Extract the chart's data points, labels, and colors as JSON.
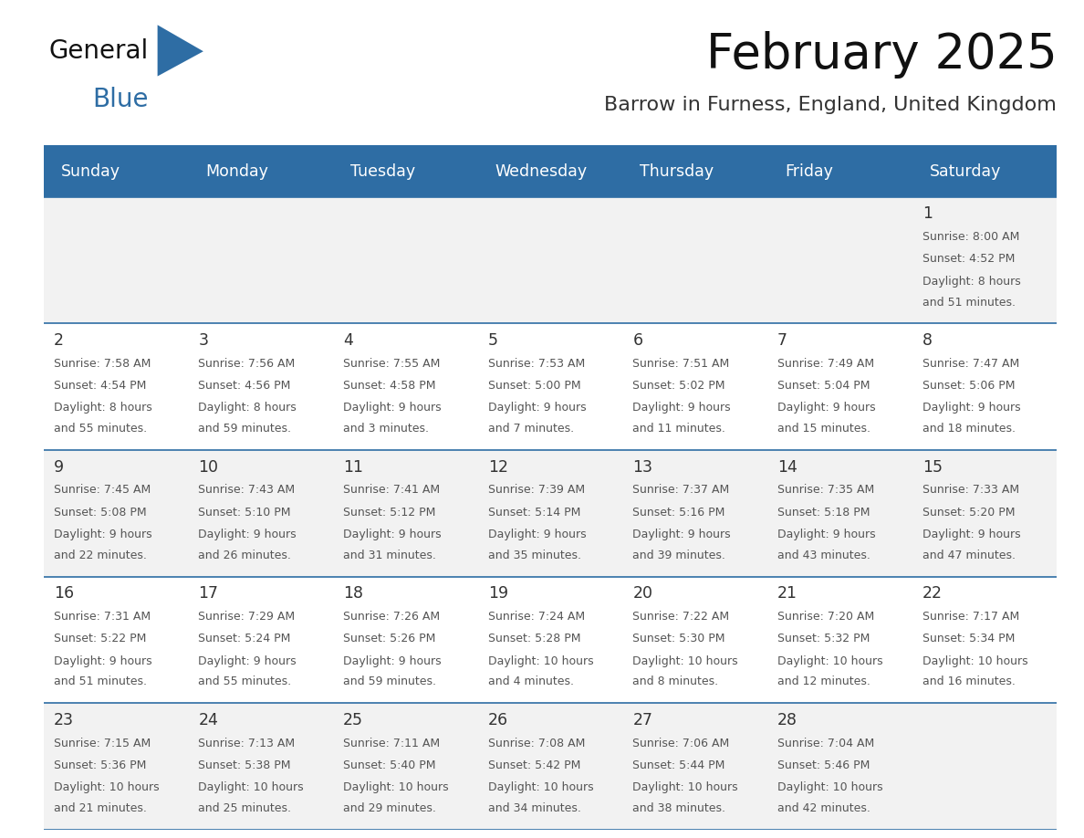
{
  "title": "February 2025",
  "subtitle": "Barrow in Furness, England, United Kingdom",
  "header_bg": "#2E6DA4",
  "header_text_color": "#FFFFFF",
  "weekdays": [
    "Sunday",
    "Monday",
    "Tuesday",
    "Wednesday",
    "Thursday",
    "Friday",
    "Saturday"
  ],
  "cell_bg_row0": "#F2F2F2",
  "cell_bg_row1": "#FFFFFF",
  "cell_bg_row2": "#F2F2F2",
  "cell_bg_row3": "#FFFFFF",
  "cell_bg_row4": "#F2F2F2",
  "cell_border_color": "#2E6DA4",
  "day_num_color": "#333333",
  "info_text_color": "#555555",
  "title_color": "#111111",
  "subtitle_color": "#333333",
  "blue_color": "#2E6DA4",
  "days": [
    {
      "day": 1,
      "row": 0,
      "col": 6,
      "sunrise": "8:00 AM",
      "sunset": "4:52 PM",
      "daylight_hrs": "8",
      "daylight_min": "51"
    },
    {
      "day": 2,
      "row": 1,
      "col": 0,
      "sunrise": "7:58 AM",
      "sunset": "4:54 PM",
      "daylight_hrs": "8",
      "daylight_min": "55"
    },
    {
      "day": 3,
      "row": 1,
      "col": 1,
      "sunrise": "7:56 AM",
      "sunset": "4:56 PM",
      "daylight_hrs": "8",
      "daylight_min": "59"
    },
    {
      "day": 4,
      "row": 1,
      "col": 2,
      "sunrise": "7:55 AM",
      "sunset": "4:58 PM",
      "daylight_hrs": "9",
      "daylight_min": "3"
    },
    {
      "day": 5,
      "row": 1,
      "col": 3,
      "sunrise": "7:53 AM",
      "sunset": "5:00 PM",
      "daylight_hrs": "9",
      "daylight_min": "7"
    },
    {
      "day": 6,
      "row": 1,
      "col": 4,
      "sunrise": "7:51 AM",
      "sunset": "5:02 PM",
      "daylight_hrs": "9",
      "daylight_min": "11"
    },
    {
      "day": 7,
      "row": 1,
      "col": 5,
      "sunrise": "7:49 AM",
      "sunset": "5:04 PM",
      "daylight_hrs": "9",
      "daylight_min": "15"
    },
    {
      "day": 8,
      "row": 1,
      "col": 6,
      "sunrise": "7:47 AM",
      "sunset": "5:06 PM",
      "daylight_hrs": "9",
      "daylight_min": "18"
    },
    {
      "day": 9,
      "row": 2,
      "col": 0,
      "sunrise": "7:45 AM",
      "sunset": "5:08 PM",
      "daylight_hrs": "9",
      "daylight_min": "22"
    },
    {
      "day": 10,
      "row": 2,
      "col": 1,
      "sunrise": "7:43 AM",
      "sunset": "5:10 PM",
      "daylight_hrs": "9",
      "daylight_min": "26"
    },
    {
      "day": 11,
      "row": 2,
      "col": 2,
      "sunrise": "7:41 AM",
      "sunset": "5:12 PM",
      "daylight_hrs": "9",
      "daylight_min": "31"
    },
    {
      "day": 12,
      "row": 2,
      "col": 3,
      "sunrise": "7:39 AM",
      "sunset": "5:14 PM",
      "daylight_hrs": "9",
      "daylight_min": "35"
    },
    {
      "day": 13,
      "row": 2,
      "col": 4,
      "sunrise": "7:37 AM",
      "sunset": "5:16 PM",
      "daylight_hrs": "9",
      "daylight_min": "39"
    },
    {
      "day": 14,
      "row": 2,
      "col": 5,
      "sunrise": "7:35 AM",
      "sunset": "5:18 PM",
      "daylight_hrs": "9",
      "daylight_min": "43"
    },
    {
      "day": 15,
      "row": 2,
      "col": 6,
      "sunrise": "7:33 AM",
      "sunset": "5:20 PM",
      "daylight_hrs": "9",
      "daylight_min": "47"
    },
    {
      "day": 16,
      "row": 3,
      "col": 0,
      "sunrise": "7:31 AM",
      "sunset": "5:22 PM",
      "daylight_hrs": "9",
      "daylight_min": "51"
    },
    {
      "day": 17,
      "row": 3,
      "col": 1,
      "sunrise": "7:29 AM",
      "sunset": "5:24 PM",
      "daylight_hrs": "9",
      "daylight_min": "55"
    },
    {
      "day": 18,
      "row": 3,
      "col": 2,
      "sunrise": "7:26 AM",
      "sunset": "5:26 PM",
      "daylight_hrs": "9",
      "daylight_min": "59"
    },
    {
      "day": 19,
      "row": 3,
      "col": 3,
      "sunrise": "7:24 AM",
      "sunset": "5:28 PM",
      "daylight_hrs": "10",
      "daylight_min": "4"
    },
    {
      "day": 20,
      "row": 3,
      "col": 4,
      "sunrise": "7:22 AM",
      "sunset": "5:30 PM",
      "daylight_hrs": "10",
      "daylight_min": "8"
    },
    {
      "day": 21,
      "row": 3,
      "col": 5,
      "sunrise": "7:20 AM",
      "sunset": "5:32 PM",
      "daylight_hrs": "10",
      "daylight_min": "12"
    },
    {
      "day": 22,
      "row": 3,
      "col": 6,
      "sunrise": "7:17 AM",
      "sunset": "5:34 PM",
      "daylight_hrs": "10",
      "daylight_min": "16"
    },
    {
      "day": 23,
      "row": 4,
      "col": 0,
      "sunrise": "7:15 AM",
      "sunset": "5:36 PM",
      "daylight_hrs": "10",
      "daylight_min": "21"
    },
    {
      "day": 24,
      "row": 4,
      "col": 1,
      "sunrise": "7:13 AM",
      "sunset": "5:38 PM",
      "daylight_hrs": "10",
      "daylight_min": "25"
    },
    {
      "day": 25,
      "row": 4,
      "col": 2,
      "sunrise": "7:11 AM",
      "sunset": "5:40 PM",
      "daylight_hrs": "10",
      "daylight_min": "29"
    },
    {
      "day": 26,
      "row": 4,
      "col": 3,
      "sunrise": "7:08 AM",
      "sunset": "5:42 PM",
      "daylight_hrs": "10",
      "daylight_min": "34"
    },
    {
      "day": 27,
      "row": 4,
      "col": 4,
      "sunrise": "7:06 AM",
      "sunset": "5:44 PM",
      "daylight_hrs": "10",
      "daylight_min": "38"
    },
    {
      "day": 28,
      "row": 4,
      "col": 5,
      "sunrise": "7:04 AM",
      "sunset": "5:46 PM",
      "daylight_hrs": "10",
      "daylight_min": "42"
    }
  ]
}
